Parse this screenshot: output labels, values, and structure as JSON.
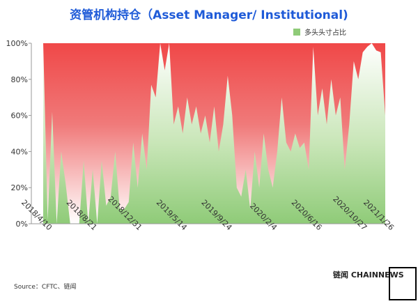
{
  "chart_data": {
    "type": "area",
    "title": "资管机构持仓（Asset Manager/ Institutional)",
    "categories": [
      "2018/4/10",
      null,
      null,
      null,
      null,
      null,
      null,
      null,
      null,
      null,
      "2018/8/21",
      null,
      null,
      null,
      null,
      null,
      null,
      null,
      null,
      null,
      "2018/12/31",
      null,
      null,
      null,
      null,
      null,
      null,
      null,
      null,
      null,
      "2019/5/14",
      null,
      null,
      null,
      null,
      null,
      null,
      null,
      null,
      null,
      "2019/9/24",
      null,
      null,
      null,
      null,
      null,
      null,
      null,
      null,
      null,
      "2020/2/4",
      null,
      null,
      null,
      null,
      null,
      null,
      null,
      null,
      null,
      "2020/6/16",
      null,
      null,
      null,
      null,
      null,
      null,
      null,
      null,
      null,
      "2020/10/27",
      null,
      null,
      null,
      null,
      null,
      "2021/1/26"
    ],
    "series": [
      {
        "name": "多头头寸占比",
        "color": "#8fcb78",
        "values": [
          100,
          2,
          62,
          0,
          40,
          22,
          0,
          0,
          0,
          35,
          0,
          30,
          0,
          35,
          10,
          15,
          40,
          8,
          8,
          12,
          45,
          20,
          50,
          30,
          77,
          70,
          100,
          85,
          100,
          55,
          65,
          50,
          70,
          55,
          65,
          50,
          60,
          45,
          65,
          40,
          55,
          82,
          60,
          20,
          15,
          30,
          8,
          40,
          20,
          50,
          30,
          20,
          40,
          70,
          45,
          40,
          50,
          42,
          45,
          30,
          98,
          60,
          75,
          55,
          80,
          60,
          70,
          30,
          55,
          90,
          80,
          95,
          98,
          100,
          96,
          95,
          60
        ]
      }
    ],
    "background_color": "#f04848",
    "ylim": [
      0,
      100
    ],
    "yticks": [
      {
        "value": 0,
        "label": "0%"
      },
      {
        "value": 20,
        "label": "20%"
      },
      {
        "value": 40,
        "label": "40%"
      },
      {
        "value": 60,
        "label": "60%"
      },
      {
        "value": 80,
        "label": "80%"
      },
      {
        "value": 100,
        "label": "100%"
      }
    ],
    "legend": "top-right",
    "source": "Source：CFTC、链闻",
    "watermark": "链闻 CHAINNEWS"
  }
}
